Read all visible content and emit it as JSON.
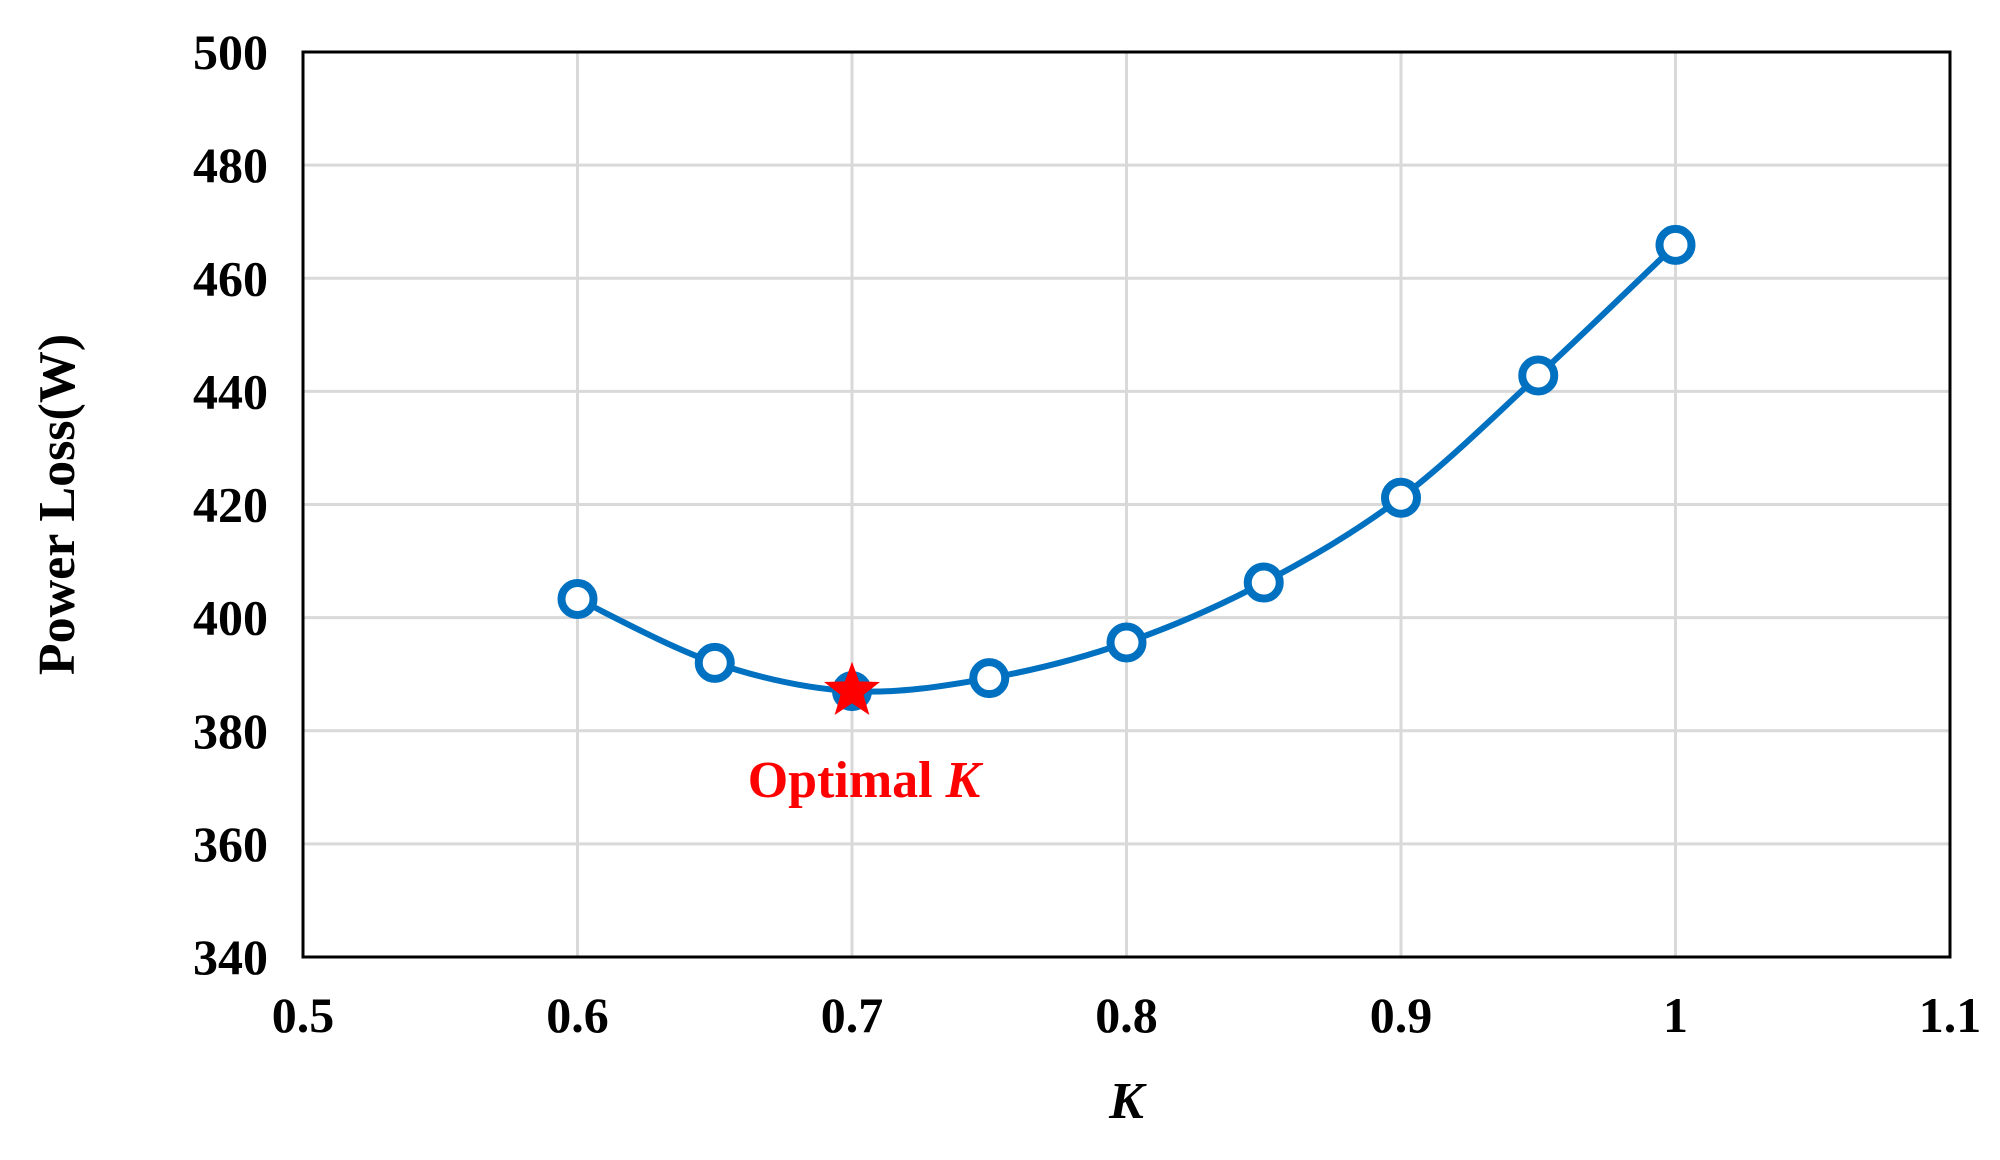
{
  "chart_data": {
    "type": "line",
    "title": "",
    "xlabel": "K",
    "ylabel": "Power Loss(W)",
    "xlim": [
      0.5,
      1.1
    ],
    "ylim": [
      340,
      500
    ],
    "xticks": [
      0.5,
      0.6,
      0.7,
      0.8,
      0.9,
      1.0,
      1.1
    ],
    "xtick_labels": [
      "0.5",
      "0.6",
      "0.7",
      "0.8",
      "0.9",
      "1",
      "1.1"
    ],
    "yticks": [
      340,
      360,
      380,
      400,
      420,
      440,
      460,
      480,
      500
    ],
    "ytick_labels": [
      "340",
      "360",
      "380",
      "400",
      "420",
      "440",
      "460",
      "480",
      "500"
    ],
    "grid": true,
    "series": [
      {
        "color": "#0070C0",
        "marker": "open-circle",
        "smooth": true,
        "x": [
          0.6,
          0.65,
          0.7,
          0.75,
          0.8,
          0.85,
          0.9,
          0.95,
          1.0
        ],
        "y": [
          403.3,
          392,
          387,
          389.3,
          395.6,
          406.2,
          421.2,
          442.8,
          465.9
        ]
      }
    ],
    "highlight": {
      "x": 0.7,
      "y": 387,
      "marker": "star",
      "color": "#FF0000",
      "label_prefix": "Optimal ",
      "label_var": "K"
    }
  }
}
